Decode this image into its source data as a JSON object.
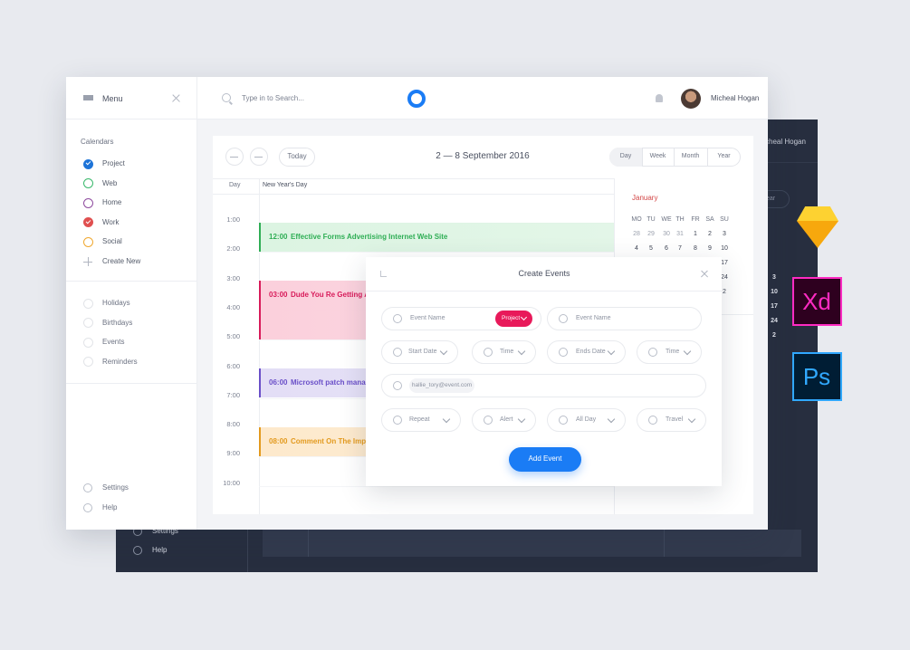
{
  "header": {
    "menu": "Menu",
    "search_placeholder": "Type in to Search...",
    "user": "Micheal Hogan"
  },
  "sidebar": {
    "section": "Calendars",
    "calendars": [
      {
        "label": "Project",
        "color": "#1e74d8",
        "checked": true
      },
      {
        "label": "Web",
        "color": "#39b86b",
        "checked": false
      },
      {
        "label": "Home",
        "color": "#8e4b9e",
        "checked": false
      },
      {
        "label": "Work",
        "color": "#e05050",
        "checked": true
      },
      {
        "label": "Social",
        "color": "#f0a830",
        "checked": false
      }
    ],
    "create": "Create New",
    "others": [
      "Holidays",
      "Birthdays",
      "Events",
      "Reminders"
    ],
    "footer": [
      "Settings",
      "Help"
    ]
  },
  "calendar": {
    "today": "Today",
    "title": "2 — 8 September 2016",
    "views": [
      "Day",
      "Week",
      "Month",
      "Year"
    ],
    "active_view": "Day",
    "day_column": "Day",
    "holiday": "New Year's Day",
    "times": [
      "1:00",
      "2:00",
      "3:00",
      "4:00",
      "5:00",
      "6:00",
      "7:00",
      "8:00",
      "9:00",
      "10:00"
    ],
    "events": [
      {
        "time": "12:00",
        "title": "Effective Forms Advertising Internet Web Site",
        "color": "#2fae55",
        "background": "#dcf4e2"
      },
      {
        "time": "03:00",
        "title": "Dude You Re Getting A Tel",
        "color": "#d81b5a",
        "background": "#fbd0dc"
      },
      {
        "time": "06:00",
        "title": "Microsoft patch manageme",
        "color": "#6a4fc8",
        "background": "#e3def6"
      },
      {
        "time": "08:00",
        "title": "Comment On The Importar",
        "color": "#e39a1e",
        "background": "#fde9cc"
      }
    ],
    "mini": {
      "month": "January",
      "weekdays": [
        "MO",
        "TU",
        "WE",
        "TH",
        "FR",
        "SA",
        "SU"
      ],
      "rows": [
        [
          "28",
          "29",
          "30",
          "31",
          "1",
          "2",
          "3"
        ],
        [
          "4",
          "5",
          "6",
          "7",
          "8",
          "9",
          "10"
        ]
      ],
      "sunday_tail": [
        "17",
        "24",
        "2"
      ]
    }
  },
  "modal": {
    "title": "Create Events",
    "fields": [
      {
        "label": "Event Name",
        "badge": "Project"
      },
      {
        "label": "Event Name"
      },
      {
        "label": "Start Date"
      },
      {
        "label": "Time"
      },
      {
        "label": "Ends Date"
      },
      {
        "label": "Time"
      },
      {
        "label": "hallie_tory@event.com"
      },
      {
        "label": "Repeat"
      },
      {
        "label": "Alert"
      },
      {
        "label": "All Day"
      },
      {
        "label": "Travel"
      }
    ],
    "button": "Add Event"
  },
  "back_panel": {
    "user": "cheal Hogan",
    "view": "ear",
    "dates": [
      "3",
      "10",
      "17",
      "24",
      "2"
    ],
    "footer": [
      "Settings",
      "Help"
    ]
  },
  "tools": [
    "Xd",
    "Ps"
  ]
}
